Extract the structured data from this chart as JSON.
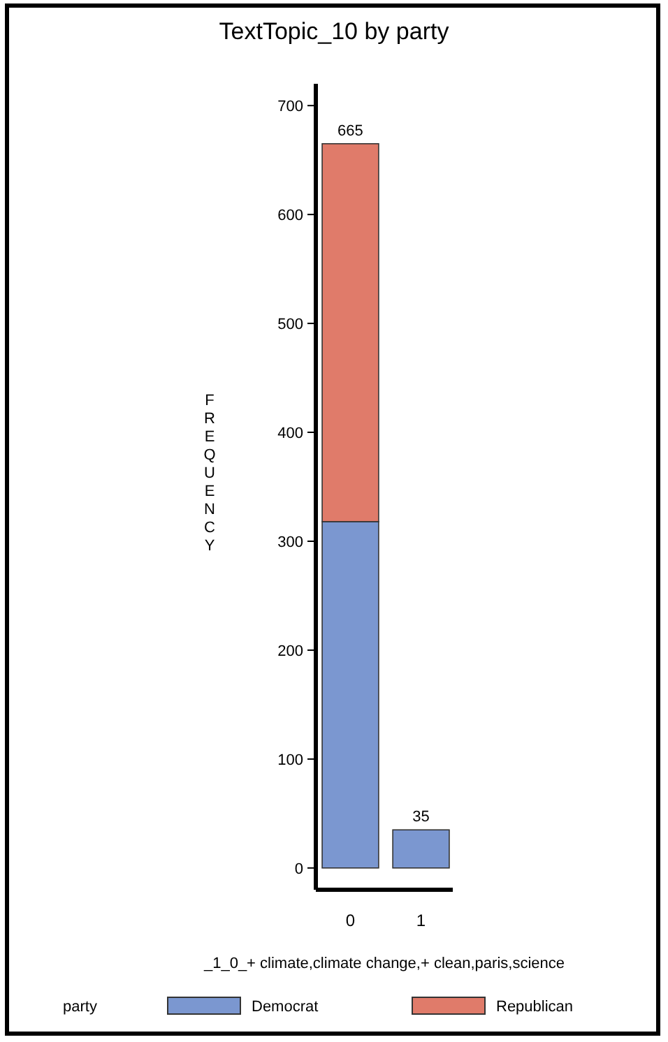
{
  "chart_data": {
    "type": "bar",
    "title": "TextTopic_10 by party",
    "xlabel": "_1_0_+ climate,climate change,+ clean,paris,science",
    "ylabel": "FREQUENCY",
    "legend_title": "party",
    "categories": [
      "0",
      "1"
    ],
    "series": [
      {
        "name": "Democrat",
        "color": "#7b97d0",
        "values": [
          318,
          35
        ]
      },
      {
        "name": "Republican",
        "color": "#e07b6a",
        "values": [
          347,
          null
        ]
      }
    ],
    "stacked": true,
    "totals": [
      "665",
      "35"
    ],
    "ylim": [
      -20,
      720
    ],
    "yticks": [
      0,
      100,
      200,
      300,
      400,
      500,
      600,
      700
    ],
    "grid": false,
    "legend": "bottom"
  }
}
